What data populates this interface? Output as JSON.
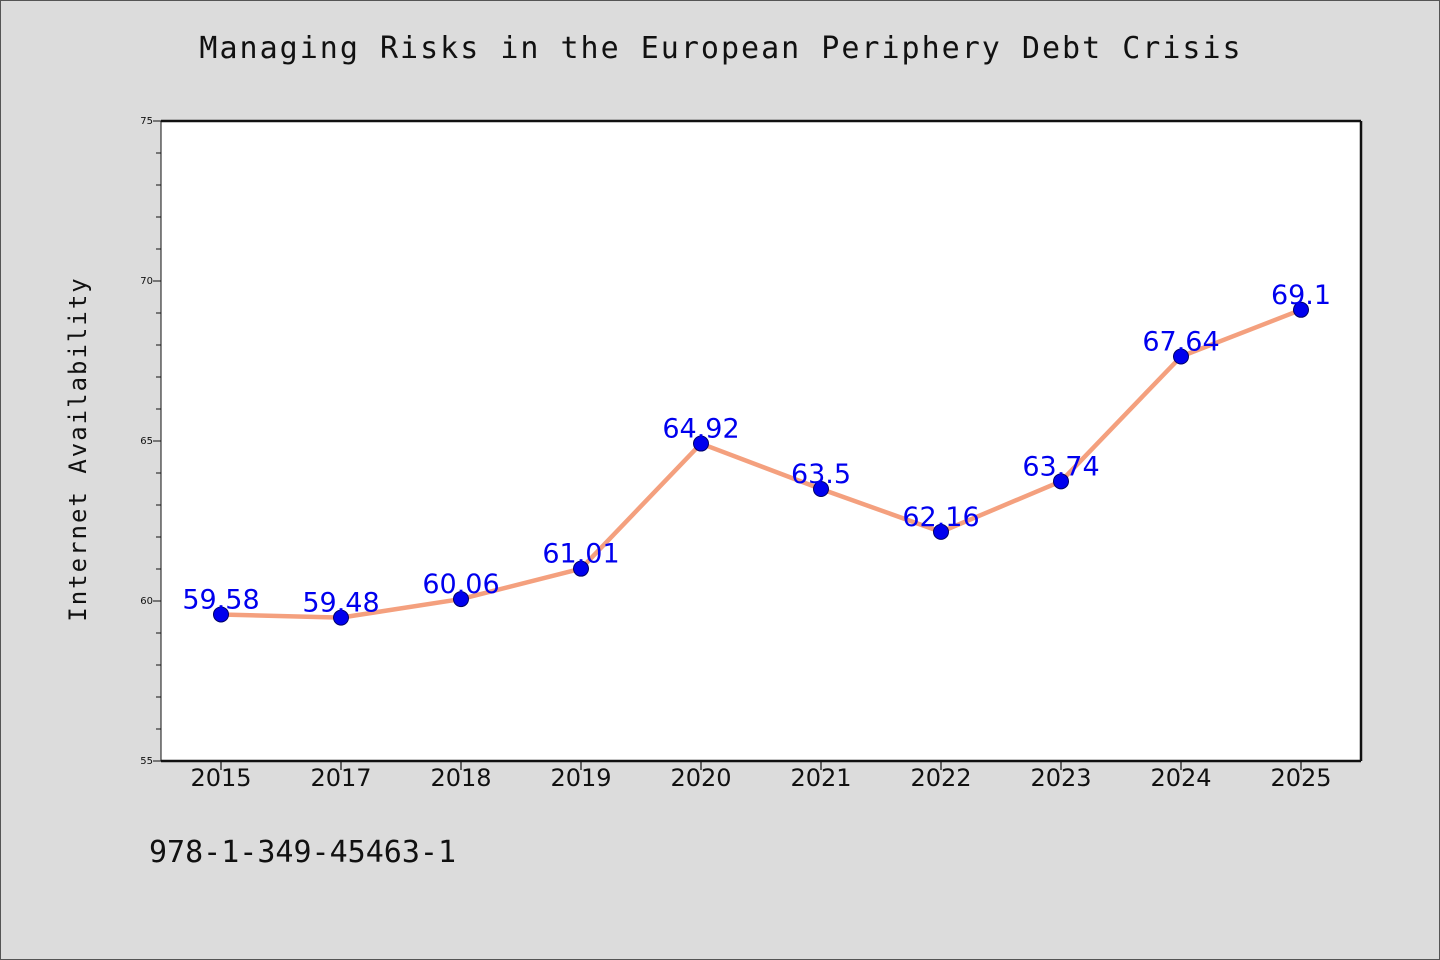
{
  "chart_data": {
    "type": "line",
    "title": "Managing Risks in the European Periphery Debt Crisis",
    "xlabel": "",
    "ylabel": "Internet Availability",
    "categories": [
      "2015",
      "2017",
      "2018",
      "2019",
      "2020",
      "2021",
      "2022",
      "2023",
      "2024",
      "2025"
    ],
    "series": [
      {
        "values": [
          59.58,
          59.48,
          60.06,
          61.01,
          64.92,
          63.5,
          62.16,
          63.74,
          67.64,
          69.1
        ]
      }
    ],
    "data_labels": [
      "59.58",
      "59.48",
      "60.06",
      "61.01",
      "64.92",
      "63.5",
      "62.16",
      "63.74",
      "67.64",
      "69.1"
    ],
    "ylim": [
      55,
      75
    ],
    "yticks": [
      "55",
      "60",
      "65",
      "70",
      "75"
    ],
    "grid": false,
    "legend": "none",
    "colors": {
      "line": "#f4a07e",
      "marker": "#0000ee",
      "label": "#0000ee",
      "background": "#dcdcdc",
      "plot_area": "#ffffff"
    }
  },
  "footer": {
    "code": "978-1-349-45463-1"
  }
}
